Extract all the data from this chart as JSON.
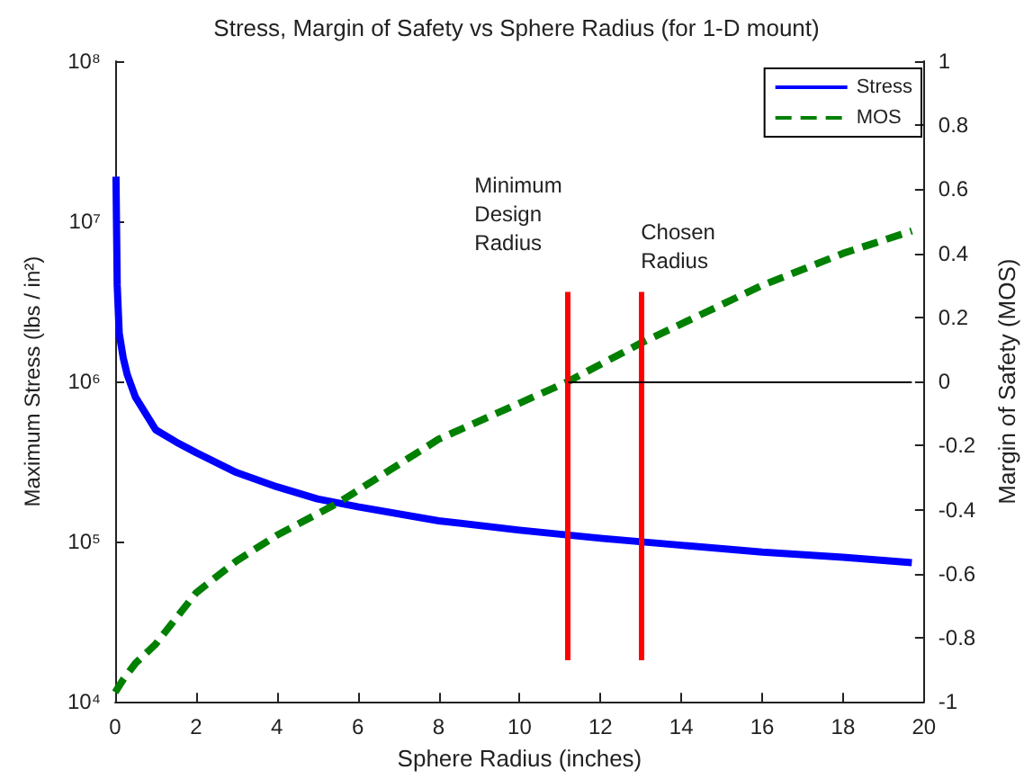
{
  "chart_data": {
    "type": "line",
    "title": "Stress, Margin of Safety vs Sphere Radius (for 1-D mount)",
    "xlabel": "Sphere Radius (inches)",
    "ylabel": "Maximum Stress (lbs / in²)",
    "y2label": "Margin of Safety (MOS)",
    "x": [
      0.02,
      0.05,
      0.1,
      0.2,
      0.3,
      0.5,
      1,
      1.5,
      2,
      3,
      4,
      5,
      6,
      8,
      10,
      12,
      14,
      16,
      18,
      19.7
    ],
    "series": [
      {
        "name": "Stress",
        "color": "#0000ff",
        "line_style": "solid",
        "values": [
          19000000,
          4000000,
          2000000,
          1400000,
          1100000,
          800000,
          500000,
          420000,
          360000,
          270000,
          220000,
          185000,
          165000,
          135000,
          118000,
          105000,
          95000,
          86000,
          80000,
          74000
        ]
      },
      {
        "name": "MOS",
        "color": "#008000",
        "line_style": "dashed",
        "axis": "y2",
        "x": [
          0,
          0.2,
          0.5,
          1,
          2,
          3,
          4,
          5.5,
          8,
          11.2,
          13,
          16,
          18,
          19.7
        ],
        "values": [
          -0.97,
          -0.93,
          -0.88,
          -0.82,
          -0.66,
          -0.56,
          -0.48,
          -0.38,
          -0.18,
          0,
          0.12,
          0.3,
          0.4,
          0.47
        ]
      }
    ],
    "xlim": [
      0,
      20
    ],
    "xticks": [
      0,
      2,
      4,
      6,
      8,
      10,
      12,
      14,
      16,
      18,
      20
    ],
    "ylim": [
      10000,
      100000000
    ],
    "yticks": [
      {
        "value": 10000,
        "label": "10⁴"
      },
      {
        "value": 100000,
        "label": "10⁵"
      },
      {
        "value": 1000000,
        "label": "10⁶"
      },
      {
        "value": 10000000,
        "label": "10⁷"
      },
      {
        "value": 100000000,
        "label": "10⁸"
      }
    ],
    "y2lim": [
      -1,
      1
    ],
    "y2ticks": [
      -1,
      -0.8,
      -0.6,
      -0.4,
      -0.2,
      0,
      0.2,
      0.4,
      0.6,
      0.8,
      1
    ],
    "log": "y",
    "grid": false,
    "legend": "top right",
    "marker": "none",
    "ref_lines": [
      {
        "axis": "x",
        "value": 11.2,
        "label": "Minimum Design Radius",
        "color": "#ff0000"
      },
      {
        "axis": "x",
        "value": 13,
        "label": "Chosen Radius",
        "color": "#ff0000"
      },
      {
        "axis": "y2",
        "value": 0,
        "label": null,
        "color": "#000000"
      }
    ]
  }
}
